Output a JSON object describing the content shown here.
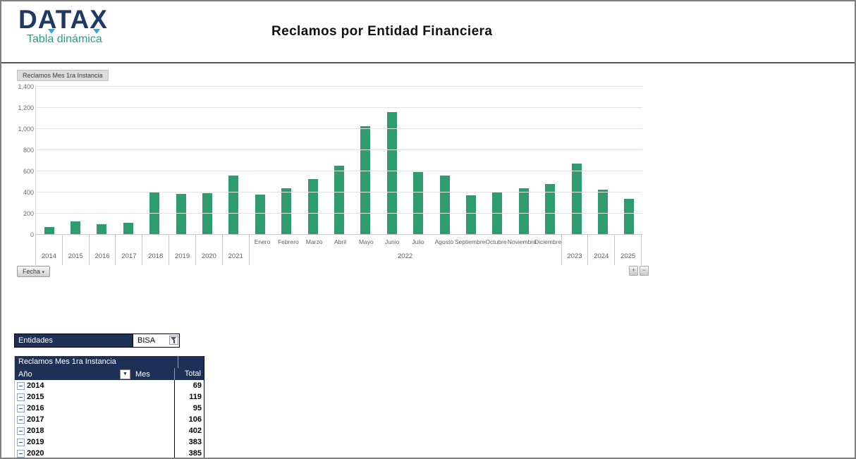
{
  "header": {
    "logo_text": "DATAX",
    "logo_subtitle": "Tabla dinámica",
    "title": "Reclamos por Entidad Financiera"
  },
  "colors": {
    "bar_green": "#2E9C6E",
    "navy": "#1F3056",
    "logo_navy": "#1F3864",
    "logo_teal": "#2E9E87"
  },
  "chart": {
    "value_field_button": "Reclamos Mes 1ra Instancia",
    "axis_field_button": "Fecha",
    "axis_field_arrow": "▾",
    "expand_button": "+",
    "collapse_button": "−"
  },
  "chart_data": {
    "type": "bar",
    "title": "Reclamos Mes 1ra Instancia",
    "xlabel": "Fecha",
    "ylabel": "",
    "ylim": [
      0,
      1400
    ],
    "ytick_step": 200,
    "ytick_labels": [
      "1,400",
      "1,200",
      "1,000",
      "800",
      "600",
      "400",
      "200",
      "0"
    ],
    "grid": true,
    "bar_color": "#2E9C6E",
    "groups": [
      {
        "label": "2014",
        "values": [
          69
        ]
      },
      {
        "label": "2015",
        "values": [
          119
        ]
      },
      {
        "label": "2016",
        "values": [
          95
        ]
      },
      {
        "label": "2017",
        "values": [
          106
        ]
      },
      {
        "label": "2018",
        "values": [
          402
        ]
      },
      {
        "label": "2019",
        "values": [
          383
        ]
      },
      {
        "label": "2020",
        "values": [
          385
        ]
      },
      {
        "label": "2021",
        "values": [
          555
        ]
      },
      {
        "label": "2022",
        "month_labels": [
          "Enero",
          "Febrero",
          "Marzo",
          "Abril",
          "Mayo",
          "Junio",
          "Julio",
          "Agosto",
          "Septiembre",
          "Octubre",
          "Noviembre",
          "Diciembre"
        ],
        "values": [
          370,
          430,
          523,
          648,
          1020,
          1150,
          585,
          550,
          365,
          390,
          433,
          475
        ]
      },
      {
        "label": "2023",
        "values": [
          665
        ]
      },
      {
        "label": "2024",
        "values": [
          422
        ]
      },
      {
        "label": "2025",
        "values": [
          335
        ]
      }
    ]
  },
  "filter": {
    "label": "Entidades",
    "value": "BISA"
  },
  "table": {
    "title": "Reclamos Mes 1ra Instancia",
    "col_year": "Año",
    "col_month": "Mes",
    "col_total": "Total",
    "rows": [
      {
        "year": "2014",
        "total": "69"
      },
      {
        "year": "2015",
        "total": "119"
      },
      {
        "year": "2016",
        "total": "95"
      },
      {
        "year": "2017",
        "total": "106"
      },
      {
        "year": "2018",
        "total": "402"
      },
      {
        "year": "2019",
        "total": "383"
      },
      {
        "year": "2020",
        "total": "385"
      }
    ]
  }
}
